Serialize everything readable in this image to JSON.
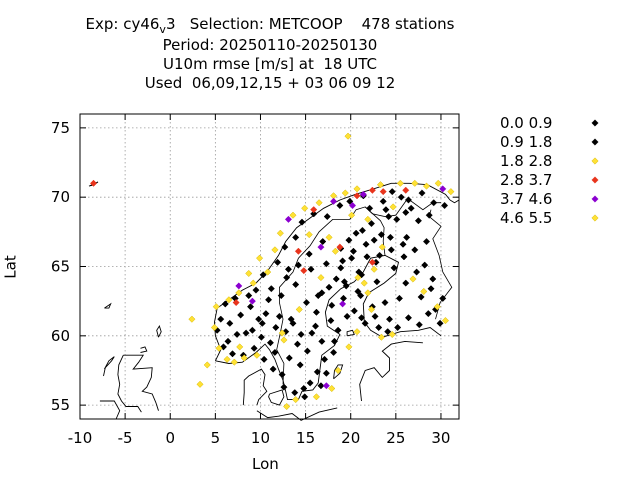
{
  "chart_data": {
    "type": "scatter",
    "title_lines": [
      "Exp: cy46_v3   Selection: METCOOP    478 stations",
      "Period: 20250110-20250130",
      "U10m rmse [m/s] at  18 UTC",
      "Used  06,09,12,15 + 03 06 09 12"
    ],
    "xlabel": "Lon",
    "ylabel": "Lat",
    "xlim": [
      -10,
      32
    ],
    "ylim": [
      54,
      76
    ],
    "xticks": [
      "-10",
      "-5",
      "0",
      "5",
      "10",
      "15",
      "20",
      "25",
      "30"
    ],
    "yticks": [
      "55",
      "60",
      "65",
      "70",
      "75"
    ],
    "grid": true,
    "legend_position": "right",
    "series": [
      {
        "name": "0.0 0.9",
        "color": "#000000",
        "points": []
      },
      {
        "name": "0.9 1.8",
        "color": "#000000",
        "points": [
          [
            5.2,
            60.4
          ],
          [
            5.6,
            61.2
          ],
          [
            6.1,
            62.3
          ],
          [
            6.6,
            60.9
          ],
          [
            7.2,
            62.7
          ],
          [
            7.8,
            61.5
          ],
          [
            8.4,
            60.2
          ],
          [
            8.9,
            62.1
          ],
          [
            9.5,
            63.3
          ],
          [
            10.1,
            59.9
          ],
          [
            10.6,
            61.6
          ],
          [
            11.2,
            63.4
          ],
          [
            11.7,
            60.6
          ],
          [
            12.3,
            62.9
          ],
          [
            12.9,
            64.2
          ],
          [
            13.4,
            61.2
          ],
          [
            13.9,
            63.7
          ],
          [
            14.5,
            60.1
          ],
          [
            15.1,
            62.4
          ],
          [
            15.6,
            64.8
          ],
          [
            16.2,
            61.7
          ],
          [
            16.8,
            63.1
          ],
          [
            17.3,
            65.2
          ],
          [
            17.9,
            62.2
          ],
          [
            18.4,
            64.1
          ],
          [
            18.9,
            66.3
          ],
          [
            19.5,
            63.6
          ],
          [
            20.1,
            65.6
          ],
          [
            20.6,
            67.4
          ],
          [
            21.2,
            64.4
          ],
          [
            21.7,
            66.6
          ],
          [
            22.3,
            68.1
          ],
          [
            22.8,
            65.3
          ],
          [
            23.4,
            67.3
          ],
          [
            23.9,
            69.1
          ],
          [
            24.5,
            66.2
          ],
          [
            25.1,
            68.4
          ],
          [
            25.6,
            70.0
          ],
          [
            26.2,
            67.1
          ],
          [
            26.7,
            69.2
          ],
          [
            27.3,
            64.6
          ],
          [
            27.8,
            62.8
          ],
          [
            28.4,
            66.8
          ],
          [
            28.9,
            63.4
          ],
          [
            29.4,
            61.9
          ],
          [
            29.9,
            60.9
          ],
          [
            24.3,
            61.2
          ],
          [
            23.1,
            60.6
          ],
          [
            25.4,
            62.7
          ],
          [
            26.1,
            63.8
          ],
          [
            22.4,
            62.1
          ],
          [
            21.6,
            60.9
          ],
          [
            20.8,
            63.2
          ],
          [
            19.6,
            61.4
          ],
          [
            18.2,
            59.6
          ],
          [
            17.1,
            58.3
          ],
          [
            16.3,
            57.4
          ],
          [
            15.5,
            56.6
          ],
          [
            14.4,
            57.9
          ],
          [
            13.2,
            58.4
          ],
          [
            12.4,
            57.2
          ],
          [
            11.6,
            58.8
          ],
          [
            13.8,
            55.9
          ],
          [
            14.8,
            56.2
          ],
          [
            16.8,
            59.6
          ],
          [
            18.6,
            60.4
          ],
          [
            19.2,
            62.7
          ],
          [
            20.4,
            61.8
          ],
          [
            21.1,
            62.9
          ],
          [
            22.9,
            63.9
          ],
          [
            24.8,
            64.9
          ],
          [
            25.9,
            65.7
          ],
          [
            27.1,
            66.2
          ],
          [
            28.2,
            65.1
          ],
          [
            29.1,
            64.1
          ],
          [
            30.2,
            62.7
          ],
          [
            28.6,
            61.6
          ],
          [
            27.6,
            60.8
          ],
          [
            26.4,
            61.3
          ],
          [
            24.1,
            60.3
          ],
          [
            8.1,
            58.6
          ],
          [
            9.3,
            59.1
          ],
          [
            10.4,
            58.3
          ],
          [
            11.1,
            59.5
          ],
          [
            12.8,
            60.3
          ],
          [
            14.1,
            59.4
          ],
          [
            15.7,
            60.2
          ],
          [
            16.4,
            62.9
          ],
          [
            17.6,
            63.5
          ],
          [
            18.9,
            64.9
          ],
          [
            19.8,
            66.9
          ],
          [
            21.3,
            67.6
          ],
          [
            22.1,
            69.2
          ],
          [
            23.6,
            69.7
          ],
          [
            24.6,
            70.4
          ],
          [
            26.4,
            69.8
          ],
          [
            27.9,
            70.3
          ],
          [
            29.2,
            69.6
          ],
          [
            30.4,
            69.4
          ],
          [
            28.7,
            68.7
          ],
          [
            27.5,
            68.3
          ],
          [
            26.1,
            68.9
          ],
          [
            24.2,
            68.6
          ],
          [
            22.6,
            66.9
          ],
          [
            21.8,
            65.7
          ],
          [
            20.9,
            64.6
          ],
          [
            19.3,
            63.9
          ],
          [
            17.8,
            61.1
          ],
          [
            16.1,
            60.7
          ],
          [
            15.2,
            58.9
          ],
          [
            13.6,
            60.9
          ],
          [
            12.1,
            61.4
          ],
          [
            10.9,
            62.6
          ],
          [
            9.8,
            61.2
          ],
          [
            8.7,
            62.9
          ],
          [
            7.4,
            60.1
          ],
          [
            6.4,
            59.6
          ],
          [
            6.9,
            58.7
          ],
          [
            5.9,
            59.2
          ],
          [
            10.3,
            64.4
          ],
          [
            11.9,
            65.3
          ],
          [
            12.7,
            66.4
          ],
          [
            13.9,
            67.1
          ],
          [
            14.6,
            68.2
          ],
          [
            15.9,
            68.8
          ],
          [
            17.4,
            68.6
          ],
          [
            18.8,
            69.4
          ],
          [
            19.9,
            69.7
          ],
          [
            21.4,
            70.1
          ],
          [
            16.9,
            66.8
          ],
          [
            15.4,
            65.9
          ],
          [
            14.2,
            65.1
          ],
          [
            13.1,
            64.8
          ],
          [
            22.7,
            61.4
          ],
          [
            23.8,
            62.4
          ],
          [
            25.2,
            60.6
          ],
          [
            21.2,
            61.3
          ],
          [
            18.1,
            58.8
          ],
          [
            17.3,
            57.3
          ],
          [
            16.7,
            56.4
          ],
          [
            14.9,
            55.6
          ],
          [
            12.6,
            56.3
          ],
          [
            11.4,
            57.6
          ],
          [
            10.2,
            60.9
          ],
          [
            9.1,
            60.4
          ],
          [
            19.1,
            65.4
          ],
          [
            20.3,
            66.1
          ],
          [
            23.2,
            65.8
          ],
          [
            24.4,
            67.1
          ],
          [
            25.8,
            66.6
          ]
        ]
      },
      {
        "name": "1.8 2.8",
        "color": "#ffe135",
        "points": [
          [
            2.4,
            61.2
          ],
          [
            5.1,
            62.1
          ],
          [
            4.9,
            60.6
          ],
          [
            5.4,
            59.1
          ],
          [
            6.3,
            58.3
          ],
          [
            7.1,
            58.1
          ],
          [
            8.2,
            58.4
          ],
          [
            9.6,
            58.6
          ],
          [
            6.5,
            62.6
          ],
          [
            7.6,
            63.1
          ],
          [
            9.2,
            63.8
          ],
          [
            10.8,
            64.6
          ],
          [
            11.6,
            66.2
          ],
          [
            12.2,
            67.4
          ],
          [
            13.6,
            68.7
          ],
          [
            14.9,
            69.2
          ],
          [
            16.5,
            69.6
          ],
          [
            18.1,
            70.1
          ],
          [
            19.4,
            70.3
          ],
          [
            20.7,
            70.6
          ],
          [
            23.3,
            70.9
          ],
          [
            25.5,
            71.0
          ],
          [
            27.1,
            71.0
          ],
          [
            28.4,
            70.8
          ],
          [
            31.1,
            70.4
          ],
          [
            24.7,
            69.3
          ],
          [
            21.9,
            68.4
          ],
          [
            20.1,
            68.7
          ],
          [
            19.7,
            74.4
          ],
          [
            17.6,
            67.1
          ],
          [
            20.8,
            64.2
          ],
          [
            21.9,
            63.1
          ],
          [
            22.3,
            61.9
          ],
          [
            20.7,
            60.3
          ],
          [
            19.8,
            59.2
          ],
          [
            18.6,
            57.5
          ],
          [
            17.9,
            56.2
          ],
          [
            16.2,
            55.6
          ],
          [
            13.9,
            55.4
          ],
          [
            12.9,
            54.9
          ],
          [
            4.1,
            57.9
          ],
          [
            3.3,
            56.5
          ],
          [
            8.7,
            64.5
          ],
          [
            9.9,
            65.6
          ],
          [
            12.6,
            59.7
          ],
          [
            14.3,
            61.9
          ],
          [
            16.7,
            64.2
          ],
          [
            18.3,
            66.1
          ],
          [
            22.6,
            64.8
          ],
          [
            23.5,
            66.4
          ],
          [
            26.9,
            64.1
          ],
          [
            28.1,
            63.2
          ],
          [
            29.6,
            62.1
          ],
          [
            30.5,
            61.1
          ],
          [
            24.6,
            60.1
          ],
          [
            23.4,
            59.9
          ]
        ]
      },
      {
        "name": "2.8 3.7",
        "color": "#e8341c",
        "points": [
          [
            -8.5,
            71.0
          ],
          [
            7.3,
            62.4
          ],
          [
            14.2,
            66.1
          ],
          [
            14.8,
            64.7
          ],
          [
            15.9,
            69.1
          ],
          [
            20.7,
            70.1
          ],
          [
            22.4,
            70.5
          ],
          [
            23.6,
            70.4
          ],
          [
            26.1,
            70.5
          ],
          [
            18.8,
            66.4
          ],
          [
            22.4,
            65.3
          ]
        ]
      },
      {
        "name": "3.7 4.6",
        "color": "#8b00d0",
        "points": [
          [
            7.6,
            63.6
          ],
          [
            9.1,
            62.5
          ],
          [
            13.1,
            68.4
          ],
          [
            16.7,
            66.4
          ],
          [
            18.1,
            69.7
          ],
          [
            20.2,
            69.4
          ],
          [
            21.4,
            70.2
          ],
          [
            19.1,
            62.3
          ],
          [
            30.2,
            70.6
          ],
          [
            17.3,
            56.4
          ]
        ]
      },
      {
        "name": "4.6 5.5",
        "color": "#ffe135",
        "points": [
          [
            7.7,
            59.2
          ],
          [
            12.4,
            60.2
          ],
          [
            15.4,
            67.3
          ],
          [
            21.5,
            63.8
          ],
          [
            29.7,
            71.0
          ]
        ]
      }
    ]
  }
}
